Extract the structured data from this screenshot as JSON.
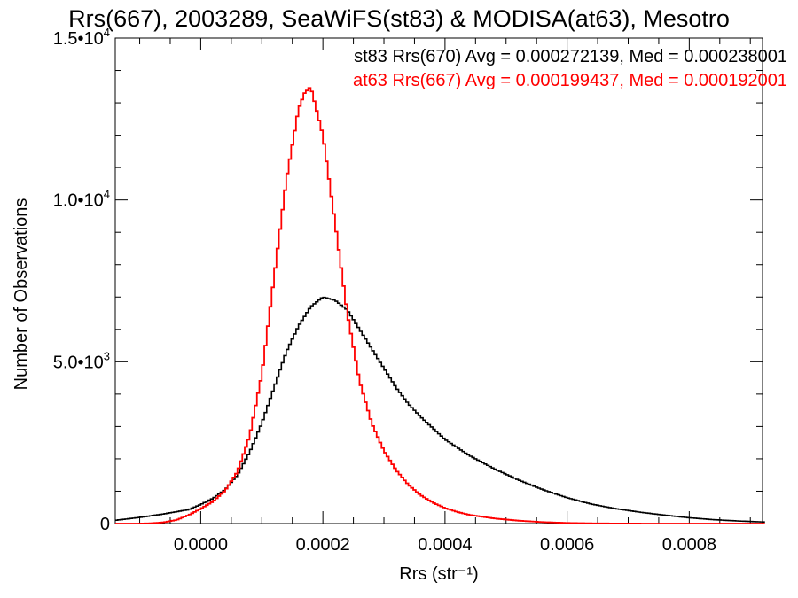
{
  "chart_data": {
    "type": "line",
    "title": "Rrs(667), 2003289, SeaWiFS(st83) & MODISA(at63), Mesotro",
    "xlabel": "Rrs (str⁻¹)",
    "ylabel": "Number of Observations",
    "xlim": [
      -0.00014,
      0.00092
    ],
    "ylim": [
      0,
      15000
    ],
    "grid": false,
    "xticks": [
      0.0,
      0.0002,
      0.0004,
      0.0006,
      0.0008
    ],
    "xtick_labels": [
      "0.0000",
      "0.0002",
      "0.0004",
      "0.0006",
      "0.0008"
    ],
    "yticks": [
      {
        "value": 0,
        "mant": "0",
        "exp": ""
      },
      {
        "value": 5000,
        "mant": "5.0•10",
        "exp": "3"
      },
      {
        "value": 10000,
        "mant": "1.0•10",
        "exp": "4"
      },
      {
        "value": 15000,
        "mant": "1.5•10",
        "exp": "4"
      }
    ],
    "annotations": [
      {
        "text": "st83 Rrs(670) Avg = 0.000272139, Med = 0.000238001",
        "color": "#000000"
      },
      {
        "text": "at63 Rrs(667) Avg = 0.000199437, Med = 0.000192001",
        "color": "#ff0000"
      }
    ],
    "series": [
      {
        "color": "#000000",
        "x": [
          -0.00014,
          -0.0001,
          -6e-05,
          -2e-05,
          0.0,
          2e-05,
          4e-05,
          6e-05,
          8e-05,
          0.0001,
          0.00012,
          0.00014,
          0.00016,
          0.00018,
          0.0002,
          0.00022,
          0.00024,
          0.00026,
          0.00028,
          0.0003,
          0.00032,
          0.00034,
          0.00036,
          0.00038,
          0.0004,
          0.00044,
          0.00048,
          0.00052,
          0.00056,
          0.0006,
          0.00064,
          0.00068,
          0.00072,
          0.00076,
          0.0008,
          0.00084,
          0.00088,
          0.00092
        ],
        "y": [
          100,
          190,
          300,
          430,
          590,
          780,
          1050,
          1500,
          2200,
          3100,
          4200,
          5300,
          6100,
          6700,
          7000,
          6900,
          6600,
          6000,
          5400,
          4800,
          4200,
          3700,
          3300,
          2950,
          2600,
          2100,
          1700,
          1350,
          1050,
          800,
          600,
          460,
          350,
          260,
          180,
          120,
          80,
          50
        ]
      },
      {
        "color": "#ff0000",
        "x": [
          -0.00014,
          -0.00012,
          -0.0001,
          -8e-05,
          -6e-05,
          -4e-05,
          -2e-05,
          0.0,
          2e-05,
          4e-05,
          6e-05,
          8e-05,
          0.0001,
          0.00012,
          0.00014,
          0.00016,
          0.00017,
          0.00018,
          0.0002,
          0.00022,
          0.00024,
          0.00026,
          0.00028,
          0.0003,
          0.00032,
          0.00034,
          0.00036,
          0.00038,
          0.0004,
          0.00042,
          0.00044,
          0.00048,
          0.00052,
          0.00056,
          0.0006,
          0.00064,
          0.00068,
          0.00072,
          0.00076,
          0.0008,
          0.00092
        ],
        "y": [
          0,
          0,
          0,
          10,
          40,
          110,
          260,
          460,
          680,
          1020,
          1600,
          2700,
          4600,
          7600,
          10600,
          12800,
          13300,
          13500,
          12000,
          9300,
          6500,
          4400,
          3100,
          2250,
          1650,
          1200,
          880,
          650,
          480,
          360,
          270,
          160,
          90,
          45,
          20,
          8,
          3,
          1,
          0,
          0,
          0
        ]
      }
    ]
  }
}
